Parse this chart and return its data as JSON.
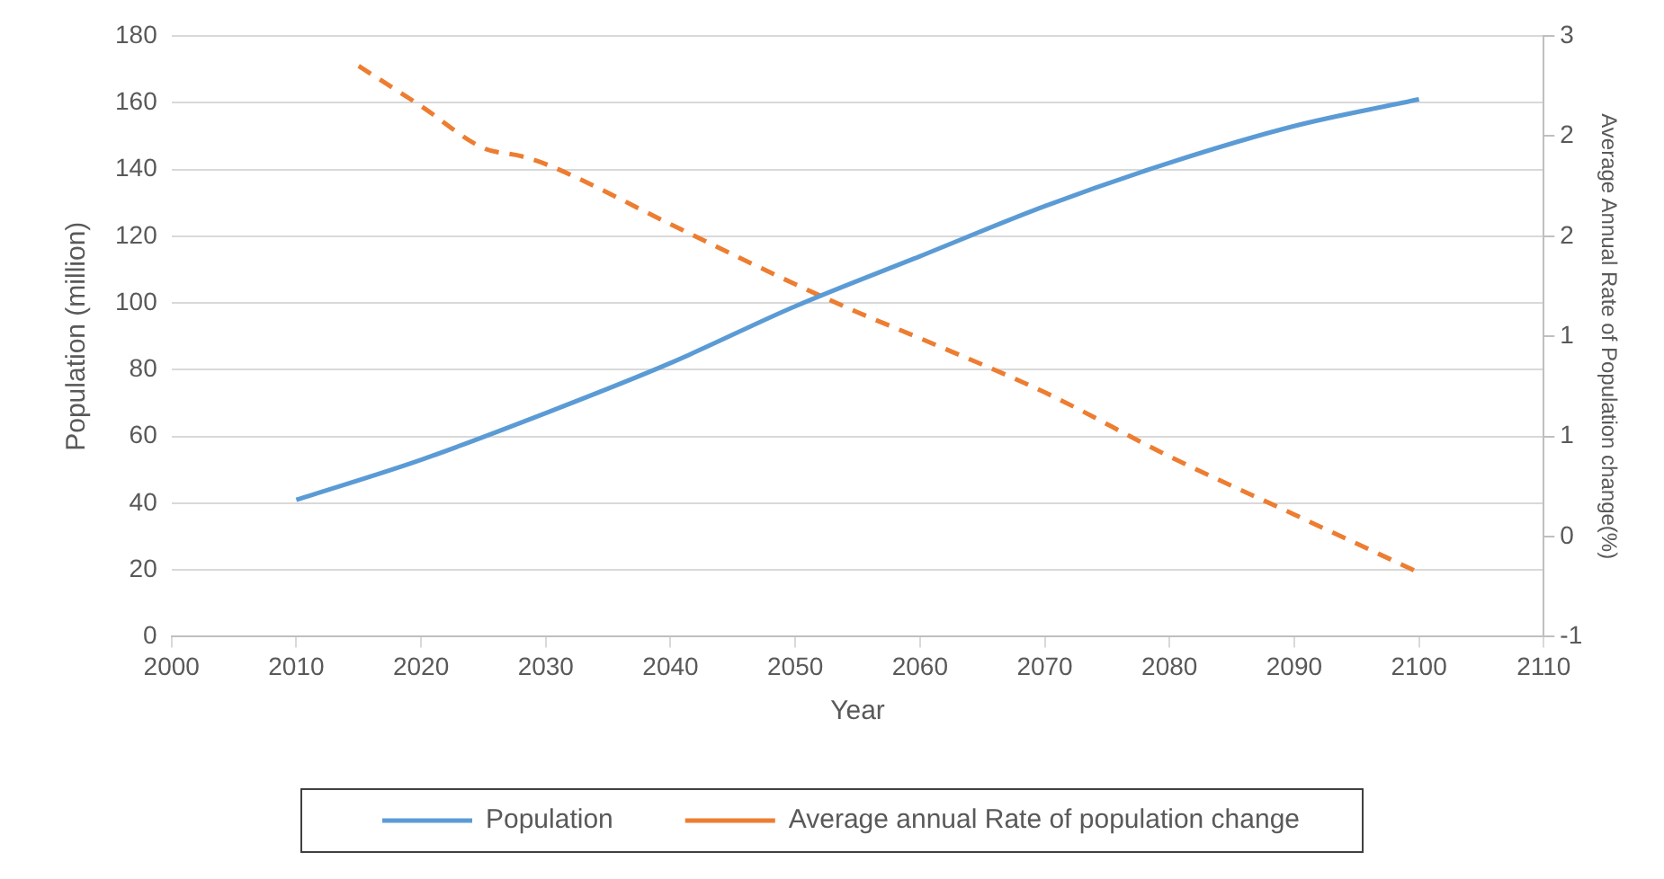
{
  "chart_data": {
    "type": "line",
    "xlabel": "Year",
    "ylabel": "Population (million)",
    "y2label": "Average Annual Rate of Population change(%)",
    "xlim": [
      2000,
      2110
    ],
    "xticks": [
      2000,
      2010,
      2020,
      2030,
      2040,
      2050,
      2060,
      2070,
      2080,
      2090,
      2100,
      2110
    ],
    "ylim": [
      0,
      180
    ],
    "yticks": [
      0,
      20,
      40,
      60,
      80,
      100,
      120,
      140,
      160,
      180
    ],
    "y2lim": [
      -0.5,
      2.5
    ],
    "y2ticks": [
      {
        "value": -0.5,
        "label": "-1"
      },
      {
        "value": 0,
        "label": "0"
      },
      {
        "value": 0.5,
        "label": "1"
      },
      {
        "value": 1,
        "label": "1"
      },
      {
        "value": 1.5,
        "label": "2"
      },
      {
        "value": 2,
        "label": "2"
      },
      {
        "value": 2.5,
        "label": "3"
      }
    ],
    "grid": "y",
    "legend": "bottom",
    "marker": "none",
    "series": [
      {
        "name": "Population",
        "color": "#5b9bd5",
        "line_style": "solid",
        "x": [
          2010,
          2020,
          2030,
          2040,
          2050,
          2060,
          2070,
          2080,
          2090,
          2100
        ],
        "values": [
          41,
          53,
          67,
          82,
          99,
          114,
          129,
          142,
          153,
          161
        ]
      },
      {
        "name": "Average annual Rate of population change",
        "color": "#ed7d31",
        "line_style": "dashed",
        "axis": "y2",
        "x": [
          2015,
          2020,
          2025,
          2028,
          2030,
          2040,
          2050,
          2055,
          2060,
          2070,
          2080,
          2090,
          2100
        ],
        "values": [
          2.35,
          2.15,
          1.94,
          1.9,
          1.86,
          1.56,
          1.26,
          1.12,
          0.99,
          0.72,
          0.4,
          0.11,
          -0.18
        ]
      }
    ]
  }
}
